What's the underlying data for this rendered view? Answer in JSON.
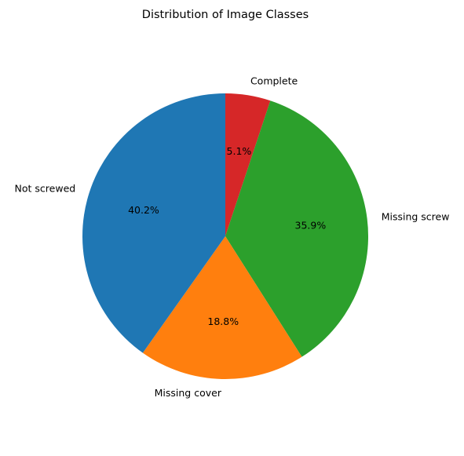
{
  "chart_data": {
    "type": "pie",
    "title": "Distribution of Image Classes",
    "start_angle_deg": 90,
    "direction": "clockwise",
    "slices": [
      {
        "label": "Complete",
        "value": 5.1,
        "pct_label": "5.1%",
        "color": "#d62728"
      },
      {
        "label": "Missing screw",
        "value": 35.9,
        "pct_label": "35.9%",
        "color": "#2ca02c"
      },
      {
        "label": "Missing cover",
        "value": 18.8,
        "pct_label": "18.8%",
        "color": "#ff7f0e"
      },
      {
        "label": "Not screwed",
        "value": 40.2,
        "pct_label": "40.2%",
        "color": "#1f77b4"
      }
    ]
  }
}
